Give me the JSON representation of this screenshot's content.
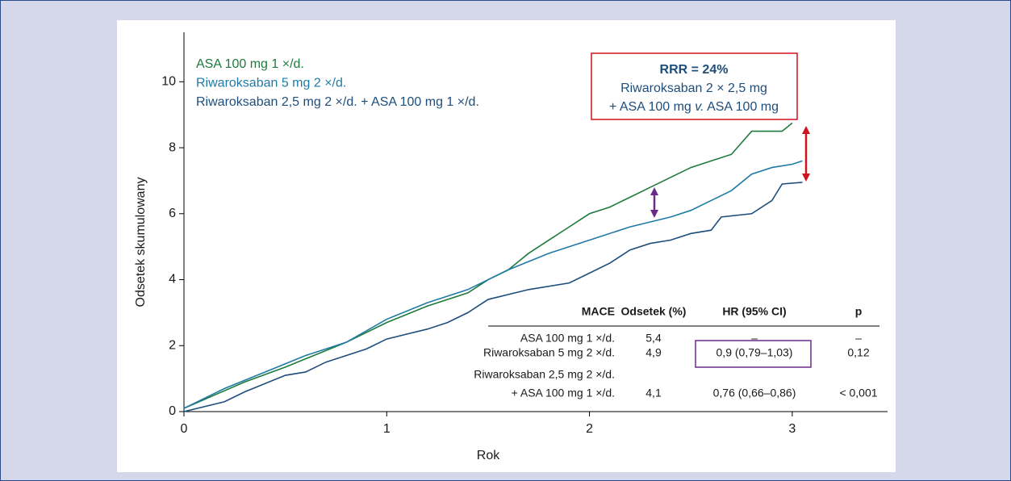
{
  "chart_data": {
    "type": "line",
    "xlabel": "Rok",
    "ylabel": "Odsetek skumulowany",
    "xlim": [
      0,
      3.47
    ],
    "ylim": [
      0,
      11.5
    ],
    "xticks": [
      0,
      1,
      2,
      3
    ],
    "yticks": [
      0,
      2,
      4,
      6,
      8,
      10
    ],
    "series": [
      {
        "name": "ASA 100 mg 1 ×/d.",
        "color": "#1e7a3c",
        "x": [
          0,
          0.15,
          0.3,
          0.5,
          0.8,
          1.0,
          1.2,
          1.4,
          1.5,
          1.6,
          1.7,
          1.8,
          1.9,
          2.0,
          2.1,
          2.2,
          2.3,
          2.4,
          2.5,
          2.6,
          2.7,
          2.8,
          2.95,
          3.0
        ],
        "values": [
          0.1,
          0.5,
          0.9,
          1.35,
          2.1,
          2.7,
          3.2,
          3.6,
          4.0,
          4.3,
          4.8,
          5.2,
          5.6,
          6.0,
          6.2,
          6.5,
          6.8,
          7.1,
          7.4,
          7.6,
          7.8,
          8.5,
          8.5,
          8.75
        ]
      },
      {
        "name": "Riwaroksaban 5 mg 2 ×/d.",
        "color": "#1f7aa6",
        "x": [
          0,
          0.2,
          0.4,
          0.6,
          0.8,
          1.0,
          1.2,
          1.4,
          1.6,
          1.8,
          2.0,
          2.2,
          2.4,
          2.5,
          2.6,
          2.7,
          2.8,
          2.9,
          3.0,
          3.05
        ],
        "values": [
          0.1,
          0.7,
          1.2,
          1.7,
          2.1,
          2.8,
          3.3,
          3.7,
          4.3,
          4.8,
          5.2,
          5.6,
          5.9,
          6.1,
          6.4,
          6.7,
          7.2,
          7.4,
          7.5,
          7.6
        ]
      },
      {
        "name": "Riwaroksaban 2,5 mg 2 ×/d. + ASA 100 mg 1 ×/d.",
        "color": "#1d4e7c",
        "x": [
          0,
          0.2,
          0.3,
          0.5,
          0.6,
          0.7,
          0.9,
          1.0,
          1.2,
          1.3,
          1.4,
          1.5,
          1.7,
          1.9,
          2.0,
          2.1,
          2.2,
          2.3,
          2.4,
          2.5,
          2.6,
          2.65,
          2.8,
          2.9,
          2.95,
          3.05
        ],
        "values": [
          0,
          0.3,
          0.6,
          1.1,
          1.2,
          1.5,
          1.9,
          2.2,
          2.5,
          2.7,
          3.0,
          3.4,
          3.7,
          3.9,
          4.2,
          4.5,
          4.9,
          5.1,
          5.2,
          5.4,
          5.5,
          5.9,
          6.0,
          6.4,
          6.9,
          6.95
        ]
      }
    ],
    "annotation": {
      "title": "RRR = 24%",
      "line1": "Riwaroksaban 2 × 2,5 mg",
      "line2": [
        "+ ASA 100 mg ",
        "v.",
        " ASA 100 mg"
      ]
    },
    "table": {
      "header": [
        "MACE",
        "Odsetek (%)",
        "HR (95% CI)",
        "p"
      ],
      "rows": [
        {
          "label": [
            "ASA 100 mg 1 ×/d."
          ],
          "cells": [
            "5,4",
            "–",
            "–"
          ]
        },
        {
          "label": [
            "Riwaroksaban 5 mg 2 ×/d."
          ],
          "cells": [
            "4,9",
            "0,9 (0,79–1,03)",
            "0,12"
          ]
        },
        {
          "label": [
            "Riwaroksaban 2,5 mg 2 ×/d.",
            "+ ASA 100 mg 1 ×/d."
          ],
          "cells": [
            "4,1",
            "0,76 (0,66–0,86)",
            "< 0,001"
          ]
        }
      ]
    }
  }
}
